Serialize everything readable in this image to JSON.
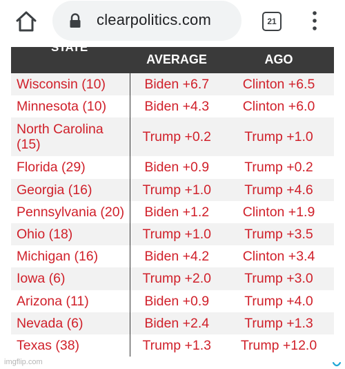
{
  "browser": {
    "url": "clearpolitics.com",
    "tab_count": "21",
    "icons": {
      "home": "home-icon",
      "lock": "lock-icon",
      "menu": "more-vert-icon"
    }
  },
  "table": {
    "headers": [
      "STATE",
      "AVERAGE",
      "AGO"
    ],
    "rows": [
      {
        "state": "Wisconsin (10)",
        "average": "Biden +6.7",
        "ago": "Clinton +6.5"
      },
      {
        "state": "Minnesota (10)",
        "average": "Biden +4.3",
        "ago": "Clinton +6.0"
      },
      {
        "state": "North Carolina (15)",
        "average": "Trump +0.2",
        "ago": "Trump +1.0"
      },
      {
        "state": "Florida (29)",
        "average": "Biden +0.9",
        "ago": "Trump +0.2"
      },
      {
        "state": "Georgia (16)",
        "average": "Trump +1.0",
        "ago": "Trump +4.6"
      },
      {
        "state": "Pennsylvania (20)",
        "average": "Biden +1.2",
        "ago": "Clinton +1.9"
      },
      {
        "state": "Ohio (18)",
        "average": "Trump +1.0",
        "ago": "Trump +3.5"
      },
      {
        "state": "Michigan (16)",
        "average": "Biden +4.2",
        "ago": "Clinton +3.4"
      },
      {
        "state": "Iowa (6)",
        "average": "Trump +2.0",
        "ago": "Trump +3.0"
      },
      {
        "state": "Arizona (11)",
        "average": "Biden +0.9",
        "ago": "Trump +4.0"
      },
      {
        "state": "Nevada (6)",
        "average": "Biden +2.4",
        "ago": "Trump +1.3"
      },
      {
        "state": "Texas (38)",
        "average": "Trump +1.3",
        "ago": "Trump +12.0"
      }
    ]
  },
  "watermark": "imgflip.com",
  "colors": {
    "header_bg": "#3a3a3a",
    "text_red": "#d0202a",
    "row_alt": "#f2f2f2",
    "url_pill": "#f1f3f4",
    "corner_mark": "#1ea7d6"
  }
}
